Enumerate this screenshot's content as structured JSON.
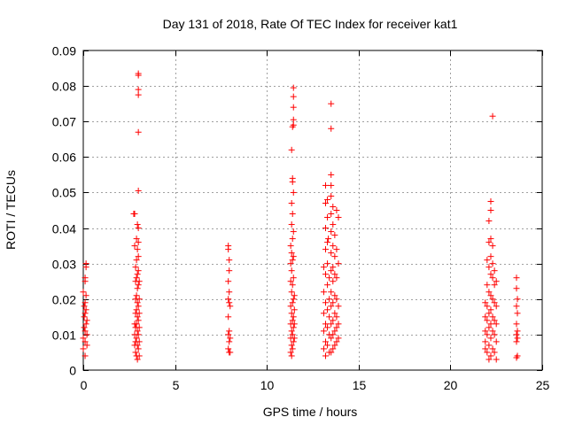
{
  "chart_data": {
    "type": "scatter",
    "title": "Day 131 of 2018, Rate Of TEC Index for receiver kat1",
    "xlabel": "GPS time / hours",
    "ylabel": "ROTI / TECUs",
    "xlim": [
      0,
      25
    ],
    "ylim": [
      0,
      0.09
    ],
    "x_ticks": [
      0,
      5,
      10,
      15,
      20,
      25
    ],
    "x_tick_labels": [
      "0",
      "5",
      "10",
      "15",
      "20",
      "25"
    ],
    "y_ticks": [
      0,
      0.01,
      0.02,
      0.03,
      0.04,
      0.05,
      0.06,
      0.07,
      0.08,
      0.09
    ],
    "y_tick_labels": [
      "0",
      "0.01",
      "0.02",
      "0.03",
      "0.04",
      "0.05",
      "0.06",
      "0.07",
      "0.08",
      "0.09"
    ],
    "grid": true,
    "marker": "+",
    "series": [
      {
        "name": "kat1",
        "color": "#ff0000",
        "points": [
          [
            0.0,
            0.006
          ],
          [
            0.0,
            0.009
          ],
          [
            0.05,
            0.012
          ],
          [
            0.05,
            0.015
          ],
          [
            0.1,
            0.004
          ],
          [
            0.1,
            0.008
          ],
          [
            0.1,
            0.011
          ],
          [
            0.1,
            0.016
          ],
          [
            0.1,
            0.019
          ],
          [
            0.1,
            0.025
          ],
          [
            0.1,
            0.026
          ],
          [
            0.15,
            0.029
          ],
          [
            0.15,
            0.03
          ],
          [
            0.15,
            0.021
          ],
          [
            0.15,
            0.017
          ],
          [
            0.15,
            0.013
          ],
          [
            0.2,
            0.01
          ],
          [
            0.2,
            0.007
          ],
          [
            0.2,
            0.014
          ],
          [
            0.05,
            0.018
          ],
          [
            0.0,
            0.022
          ],
          [
            2.75,
            0.044
          ],
          [
            2.8,
            0.044
          ],
          [
            2.8,
            0.035
          ],
          [
            2.85,
            0.029
          ],
          [
            2.85,
            0.025
          ],
          [
            2.85,
            0.02
          ],
          [
            2.85,
            0.016
          ],
          [
            2.85,
            0.012
          ],
          [
            2.85,
            0.008
          ],
          [
            2.85,
            0.005
          ],
          [
            2.9,
            0.004
          ],
          [
            2.9,
            0.009
          ],
          [
            2.9,
            0.013
          ],
          [
            2.9,
            0.017
          ],
          [
            2.9,
            0.021
          ],
          [
            2.9,
            0.026
          ],
          [
            2.9,
            0.031
          ],
          [
            2.9,
            0.037
          ],
          [
            2.95,
            0.041
          ],
          [
            2.95,
            0.034
          ],
          [
            2.95,
            0.027
          ],
          [
            2.95,
            0.023
          ],
          [
            2.95,
            0.019
          ],
          [
            2.95,
            0.015
          ],
          [
            2.95,
            0.011
          ],
          [
            2.95,
            0.007
          ],
          [
            2.95,
            0.003
          ],
          [
            3.0,
            0.083
          ],
          [
            3.0,
            0.0835
          ],
          [
            3.0,
            0.079
          ],
          [
            3.0,
            0.0775
          ],
          [
            3.0,
            0.067
          ],
          [
            3.0,
            0.0505
          ],
          [
            3.0,
            0.04
          ],
          [
            3.0,
            0.036
          ],
          [
            3.0,
            0.032
          ],
          [
            3.0,
            0.028
          ],
          [
            3.0,
            0.024
          ],
          [
            3.0,
            0.018
          ],
          [
            3.0,
            0.014
          ],
          [
            3.0,
            0.01
          ],
          [
            3.0,
            0.006
          ],
          [
            3.05,
            0.016
          ],
          [
            3.05,
            0.012
          ],
          [
            3.05,
            0.008
          ],
          [
            3.05,
            0.02
          ],
          [
            3.05,
            0.025
          ],
          [
            2.8,
            0.013
          ],
          [
            2.8,
            0.01
          ],
          [
            2.8,
            0.007
          ],
          [
            3.05,
            0.004
          ],
          [
            7.9,
            0.035
          ],
          [
            7.9,
            0.034
          ],
          [
            7.95,
            0.031
          ],
          [
            7.95,
            0.028
          ],
          [
            7.9,
            0.025
          ],
          [
            7.95,
            0.022
          ],
          [
            7.9,
            0.02
          ],
          [
            7.95,
            0.019
          ],
          [
            8.0,
            0.018
          ],
          [
            7.9,
            0.015
          ],
          [
            7.95,
            0.011
          ],
          [
            7.9,
            0.01
          ],
          [
            8.0,
            0.009
          ],
          [
            7.95,
            0.008
          ],
          [
            7.9,
            0.006
          ],
          [
            7.95,
            0.005
          ],
          [
            8.0,
            0.005
          ],
          [
            11.3,
            0.035
          ],
          [
            11.3,
            0.03
          ],
          [
            11.3,
            0.025
          ],
          [
            11.3,
            0.018
          ],
          [
            11.3,
            0.013
          ],
          [
            11.3,
            0.009
          ],
          [
            11.3,
            0.005
          ],
          [
            11.35,
            0.062
          ],
          [
            11.35,
            0.047
          ],
          [
            11.35,
            0.041
          ],
          [
            11.35,
            0.033
          ],
          [
            11.35,
            0.028
          ],
          [
            11.35,
            0.022
          ],
          [
            11.35,
            0.016
          ],
          [
            11.35,
            0.011
          ],
          [
            11.35,
            0.007
          ],
          [
            11.35,
            0.004
          ],
          [
            11.4,
            0.0685
          ],
          [
            11.4,
            0.054
          ],
          [
            11.4,
            0.053
          ],
          [
            11.4,
            0.044
          ],
          [
            11.4,
            0.037
          ],
          [
            11.4,
            0.031
          ],
          [
            11.4,
            0.024
          ],
          [
            11.4,
            0.019
          ],
          [
            11.4,
            0.014
          ],
          [
            11.4,
            0.01
          ],
          [
            11.4,
            0.006
          ],
          [
            11.45,
            0.0795
          ],
          [
            11.45,
            0.077
          ],
          [
            11.45,
            0.074
          ],
          [
            11.45,
            0.0705
          ],
          [
            11.45,
            0.069
          ],
          [
            11.45,
            0.05
          ],
          [
            11.45,
            0.039
          ],
          [
            11.45,
            0.032
          ],
          [
            11.45,
            0.026
          ],
          [
            11.45,
            0.02
          ],
          [
            11.45,
            0.015
          ],
          [
            11.45,
            0.012
          ],
          [
            11.45,
            0.008
          ],
          [
            11.5,
            0.021
          ],
          [
            11.5,
            0.017
          ],
          [
            11.5,
            0.013
          ],
          [
            11.5,
            0.009
          ],
          [
            13.1,
            0.029
          ],
          [
            13.1,
            0.022
          ],
          [
            13.1,
            0.016
          ],
          [
            13.1,
            0.011
          ],
          [
            13.1,
            0.006
          ],
          [
            13.2,
            0.052
          ],
          [
            13.2,
            0.047
          ],
          [
            13.2,
            0.04
          ],
          [
            13.2,
            0.034
          ],
          [
            13.2,
            0.027
          ],
          [
            13.2,
            0.019
          ],
          [
            13.2,
            0.013
          ],
          [
            13.2,
            0.008
          ],
          [
            13.2,
            0.004
          ],
          [
            13.3,
            0.048
          ],
          [
            13.3,
            0.043
          ],
          [
            13.3,
            0.036
          ],
          [
            13.3,
            0.03
          ],
          [
            13.3,
            0.024
          ],
          [
            13.3,
            0.017
          ],
          [
            13.3,
            0.012
          ],
          [
            13.3,
            0.007
          ],
          [
            13.35,
            0.037
          ],
          [
            13.4,
            0.026
          ],
          [
            13.4,
            0.02
          ],
          [
            13.4,
            0.015
          ],
          [
            13.4,
            0.01
          ],
          [
            13.4,
            0.005
          ],
          [
            13.5,
            0.075
          ],
          [
            13.5,
            0.068
          ],
          [
            13.5,
            0.055
          ],
          [
            13.5,
            0.052
          ],
          [
            13.5,
            0.049
          ],
          [
            13.5,
            0.044
          ],
          [
            13.5,
            0.039
          ],
          [
            13.5,
            0.033
          ],
          [
            13.5,
            0.028
          ],
          [
            13.5,
            0.022
          ],
          [
            13.5,
            0.018
          ],
          [
            13.5,
            0.013
          ],
          [
            13.5,
            0.009
          ],
          [
            13.5,
            0.005
          ],
          [
            13.6,
            0.046
          ],
          [
            13.6,
            0.041
          ],
          [
            13.6,
            0.035
          ],
          [
            13.6,
            0.029
          ],
          [
            13.6,
            0.025
          ],
          [
            13.6,
            0.019
          ],
          [
            13.6,
            0.014
          ],
          [
            13.6,
            0.01
          ],
          [
            13.6,
            0.006
          ],
          [
            13.7,
            0.038
          ],
          [
            13.7,
            0.032
          ],
          [
            13.7,
            0.027
          ],
          [
            13.7,
            0.021
          ],
          [
            13.7,
            0.016
          ],
          [
            13.7,
            0.011
          ],
          [
            13.7,
            0.007
          ],
          [
            13.8,
            0.045
          ],
          [
            13.8,
            0.034
          ],
          [
            13.8,
            0.026
          ],
          [
            13.8,
            0.02
          ],
          [
            13.8,
            0.015
          ],
          [
            13.8,
            0.012
          ],
          [
            13.8,
            0.008
          ],
          [
            13.9,
            0.043
          ],
          [
            13.9,
            0.03
          ],
          [
            13.9,
            0.018
          ],
          [
            13.9,
            0.013
          ],
          [
            13.9,
            0.009
          ],
          [
            21.9,
            0.019
          ],
          [
            21.9,
            0.015
          ],
          [
            21.9,
            0.011
          ],
          [
            21.9,
            0.008
          ],
          [
            21.9,
            0.006
          ],
          [
            22.0,
            0.031
          ],
          [
            22.0,
            0.024
          ],
          [
            22.0,
            0.018
          ],
          [
            22.0,
            0.014
          ],
          [
            22.0,
            0.01
          ],
          [
            22.0,
            0.005
          ],
          [
            22.1,
            0.042
          ],
          [
            22.1,
            0.036
          ],
          [
            22.1,
            0.029
          ],
          [
            22.1,
            0.022
          ],
          [
            22.1,
            0.016
          ],
          [
            22.1,
            0.012
          ],
          [
            22.1,
            0.007
          ],
          [
            22.1,
            0.003
          ],
          [
            22.2,
            0.0475
          ],
          [
            22.2,
            0.045
          ],
          [
            22.2,
            0.037
          ],
          [
            22.2,
            0.032
          ],
          [
            22.2,
            0.027
          ],
          [
            22.2,
            0.021
          ],
          [
            22.2,
            0.017
          ],
          [
            22.2,
            0.013
          ],
          [
            22.2,
            0.009
          ],
          [
            22.2,
            0.004
          ],
          [
            22.3,
            0.0715
          ],
          [
            22.3,
            0.035
          ],
          [
            22.3,
            0.03
          ],
          [
            22.3,
            0.026
          ],
          [
            22.3,
            0.02
          ],
          [
            22.3,
            0.015
          ],
          [
            22.3,
            0.011
          ],
          [
            22.3,
            0.006
          ],
          [
            22.4,
            0.028
          ],
          [
            22.4,
            0.024
          ],
          [
            22.4,
            0.019
          ],
          [
            22.4,
            0.014
          ],
          [
            22.4,
            0.01
          ],
          [
            22.4,
            0.005
          ],
          [
            22.5,
            0.025
          ],
          [
            22.5,
            0.018
          ],
          [
            22.5,
            0.013
          ],
          [
            22.5,
            0.008
          ],
          [
            22.5,
            0.003
          ],
          [
            23.6,
            0.026
          ],
          [
            23.6,
            0.023
          ],
          [
            23.65,
            0.02
          ],
          [
            23.6,
            0.018
          ],
          [
            23.65,
            0.016
          ],
          [
            23.6,
            0.013
          ],
          [
            23.65,
            0.011
          ],
          [
            23.6,
            0.01
          ],
          [
            23.65,
            0.009
          ],
          [
            23.6,
            0.008
          ],
          [
            23.65,
            0.004
          ],
          [
            23.6,
            0.0035
          ]
        ]
      }
    ]
  }
}
